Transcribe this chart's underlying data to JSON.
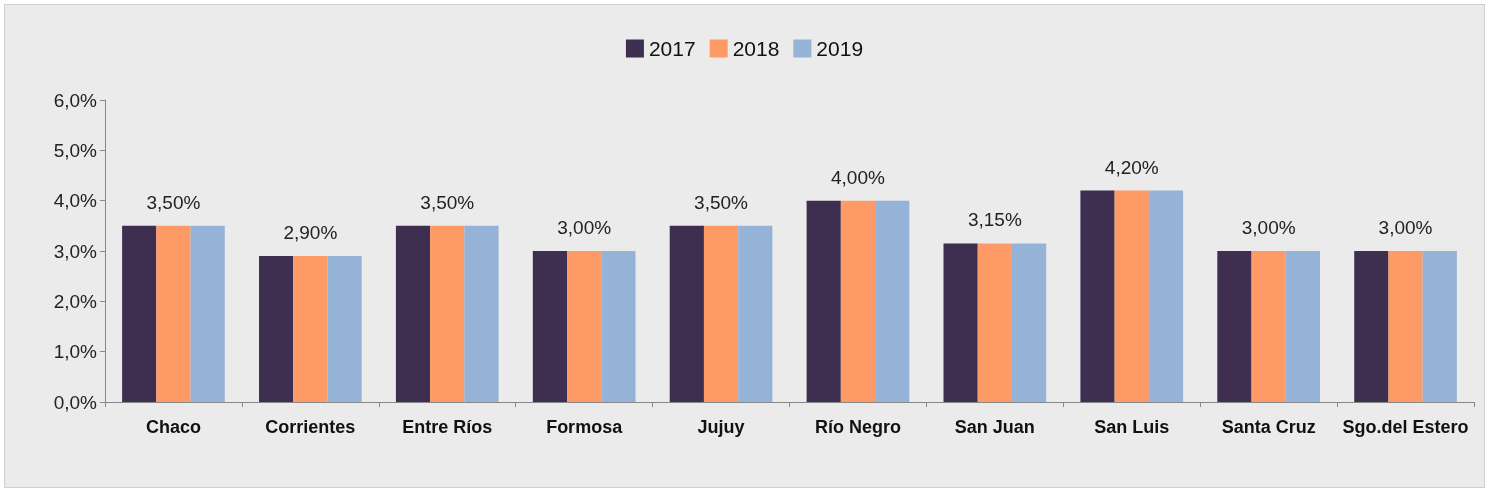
{
  "chart_data": {
    "type": "bar",
    "categories": [
      "Chaco",
      "Corrientes",
      "Entre Ríos",
      "Formosa",
      "Jujuy",
      "Río Negro",
      "San Juan",
      "San Luis",
      "Santa Cruz",
      "Sgo.del Estero"
    ],
    "series": [
      {
        "name": "2017",
        "color": "#3e2e50",
        "values": [
          3.5,
          2.9,
          3.5,
          3.0,
          3.5,
          4.0,
          3.15,
          4.2,
          3.0,
          3.0
        ]
      },
      {
        "name": "2018",
        "color": "#fe9a66",
        "values": [
          3.5,
          2.9,
          3.5,
          3.0,
          3.5,
          4.0,
          3.15,
          4.2,
          3.0,
          3.0
        ],
        "value_labels": [
          "3,50%",
          "2,90%",
          "3,50%",
          "3,00%",
          "3,50%",
          "4,00%",
          "3,15%",
          "4,20%",
          "3,00%",
          "3,00%"
        ]
      },
      {
        "name": "2019",
        "color": "#95b3d7",
        "values": [
          3.5,
          2.9,
          3.5,
          3.0,
          3.5,
          4.0,
          3.15,
          4.2,
          3.0,
          3.0
        ]
      }
    ],
    "ylim": [
      0,
      6
    ],
    "yticks": [
      {
        "value": 0,
        "label": "0,0%"
      },
      {
        "value": 1,
        "label": "1,0%"
      },
      {
        "value": 2,
        "label": "2,0%"
      },
      {
        "value": 3,
        "label": "3,0%"
      },
      {
        "value": 4,
        "label": "4,0%"
      },
      {
        "value": 5,
        "label": "5,0%"
      },
      {
        "value": 6,
        "label": "6,0%"
      }
    ],
    "grid": false,
    "legend": "top"
  }
}
